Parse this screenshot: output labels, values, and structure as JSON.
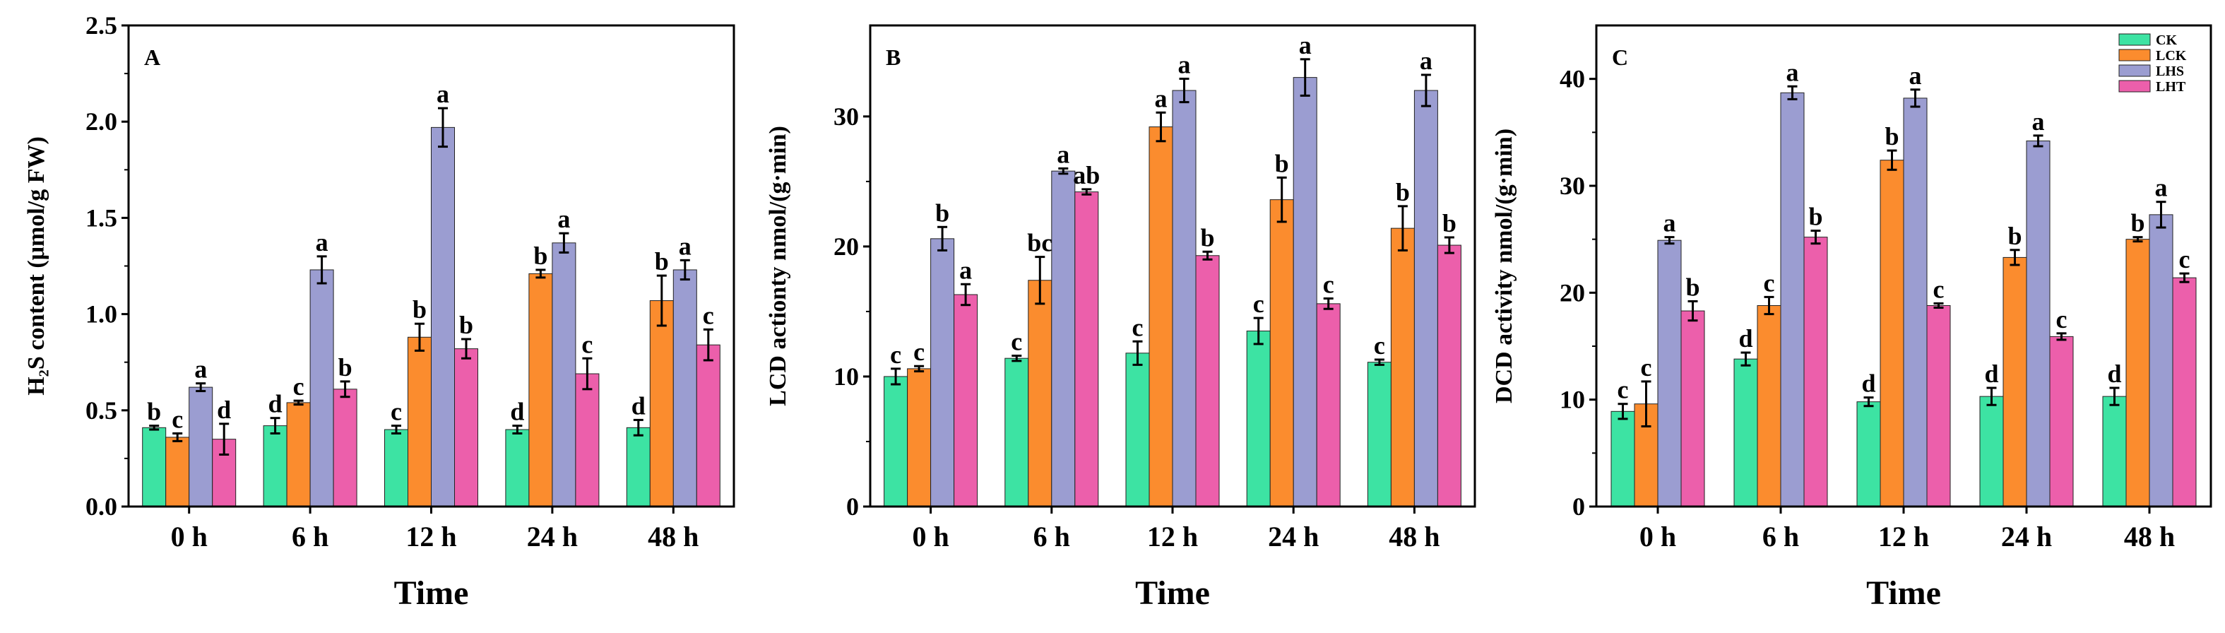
{
  "colors": {
    "CK": "#3de3a3",
    "LCK": "#fb8c2e",
    "LHS": "#9b9dd1",
    "LHT": "#ec5fab",
    "axis": "#000000"
  },
  "legend": {
    "labels": [
      "CK",
      "LCK",
      "LHS",
      "LHT"
    ]
  },
  "chart_data": [
    {
      "type": "bar",
      "panel_label": "A",
      "title": "",
      "xlabel": "Time",
      "ylabel": "H₂S content (μmol/g FW)",
      "ylim": [
        0,
        2.5
      ],
      "yticks": [
        0,
        0.5,
        1,
        1.5,
        2,
        2.5
      ],
      "ytick_labels": [
        "0.0",
        "0.5",
        "1.0",
        "1.5",
        "2.0",
        "2.5"
      ],
      "categories": [
        "0 h",
        "6 h",
        "12 h",
        "24 h",
        "48 h"
      ],
      "series": [
        {
          "name": "CK",
          "values": [
            0.41,
            0.42,
            0.4,
            0.4,
            0.41
          ],
          "errors": [
            0.01,
            0.04,
            0.02,
            0.02,
            0.04
          ],
          "letters": [
            "b",
            "d",
            "c",
            "d",
            "d"
          ]
        },
        {
          "name": "LCK",
          "values": [
            0.36,
            0.54,
            0.88,
            1.21,
            1.07
          ],
          "errors": [
            0.02,
            0.01,
            0.07,
            0.02,
            0.13
          ],
          "letters": [
            "c",
            "c",
            "b",
            "b",
            "b"
          ]
        },
        {
          "name": "LHS",
          "values": [
            0.62,
            1.23,
            1.97,
            1.37,
            1.23
          ],
          "errors": [
            0.02,
            0.07,
            0.1,
            0.05,
            0.05
          ],
          "letters": [
            "a",
            "a",
            "a",
            "a",
            "a"
          ]
        },
        {
          "name": "LHT",
          "values": [
            0.35,
            0.61,
            0.82,
            0.69,
            0.84
          ],
          "errors": [
            0.08,
            0.04,
            0.05,
            0.08,
            0.08
          ],
          "letters": [
            "d",
            "b",
            "b",
            "c",
            "c"
          ]
        }
      ]
    },
    {
      "type": "bar",
      "panel_label": "B",
      "title": "",
      "xlabel": "Time",
      "ylabel": "LCD actionty nmol/(g·min)",
      "ylim": [
        0,
        37
      ],
      "yticks": [
        0,
        10,
        20,
        30
      ],
      "ytick_labels": [
        "0",
        "10",
        "20",
        "30"
      ],
      "categories": [
        "0 h",
        "6 h",
        "12 h",
        "24 h",
        "48 h"
      ],
      "series": [
        {
          "name": "CK",
          "values": [
            10.0,
            11.4,
            11.8,
            13.5,
            11.1
          ],
          "errors": [
            0.6,
            0.2,
            0.9,
            1.0,
            0.2
          ],
          "letters": [
            "c",
            "c",
            "c",
            "c",
            "c"
          ]
        },
        {
          "name": "LCK",
          "values": [
            10.6,
            17.4,
            29.2,
            23.6,
            21.4
          ],
          "errors": [
            0.2,
            1.8,
            1.1,
            1.7,
            1.7
          ],
          "letters": [
            "c",
            "bc",
            "a",
            "b",
            "b"
          ]
        },
        {
          "name": "LHS",
          "values": [
            20.6,
            25.8,
            32.0,
            33.0,
            32.0
          ],
          "errors": [
            0.9,
            0.2,
            0.9,
            1.4,
            1.2
          ],
          "letters": [
            "b",
            "a",
            "a",
            "a",
            "a"
          ]
        },
        {
          "name": "LHT",
          "values": [
            16.3,
            24.2,
            19.3,
            15.6,
            20.1
          ],
          "errors": [
            0.8,
            0.2,
            0.3,
            0.4,
            0.6
          ],
          "letters": [
            "a",
            "ab",
            "b",
            "c",
            "b"
          ]
        }
      ]
    },
    {
      "type": "bar",
      "panel_label": "C",
      "title": "",
      "xlabel": "Time",
      "ylabel": "DCD activity nmol/(g·min)",
      "ylim": [
        0,
        45
      ],
      "yticks": [
        0,
        10,
        20,
        30,
        40
      ],
      "ytick_labels": [
        "0",
        "10",
        "20",
        "30",
        "40"
      ],
      "categories": [
        "0 h",
        "6 h",
        "12 h",
        "24 h",
        "48 h"
      ],
      "series": [
        {
          "name": "CK",
          "values": [
            8.9,
            13.8,
            9.8,
            10.3,
            10.3
          ],
          "errors": [
            0.7,
            0.6,
            0.4,
            0.8,
            0.8
          ],
          "letters": [
            "c",
            "d",
            "d",
            "d",
            "d"
          ]
        },
        {
          "name": "LCK",
          "values": [
            9.6,
            18.8,
            32.4,
            23.3,
            25.0
          ],
          "errors": [
            2.1,
            0.8,
            0.9,
            0.7,
            0.2
          ],
          "letters": [
            "c",
            "c",
            "b",
            "b",
            "b"
          ]
        },
        {
          "name": "LHS",
          "values": [
            24.9,
            38.7,
            38.2,
            34.2,
            27.3
          ],
          "errors": [
            0.3,
            0.6,
            0.8,
            0.5,
            1.2
          ],
          "letters": [
            "a",
            "a",
            "a",
            "a",
            "a"
          ]
        },
        {
          "name": "LHT",
          "values": [
            18.3,
            25.2,
            18.8,
            15.9,
            21.4
          ],
          "errors": [
            0.9,
            0.6,
            0.2,
            0.3,
            0.4
          ],
          "letters": [
            "b",
            "b",
            "c",
            "c",
            "c"
          ]
        }
      ]
    }
  ]
}
